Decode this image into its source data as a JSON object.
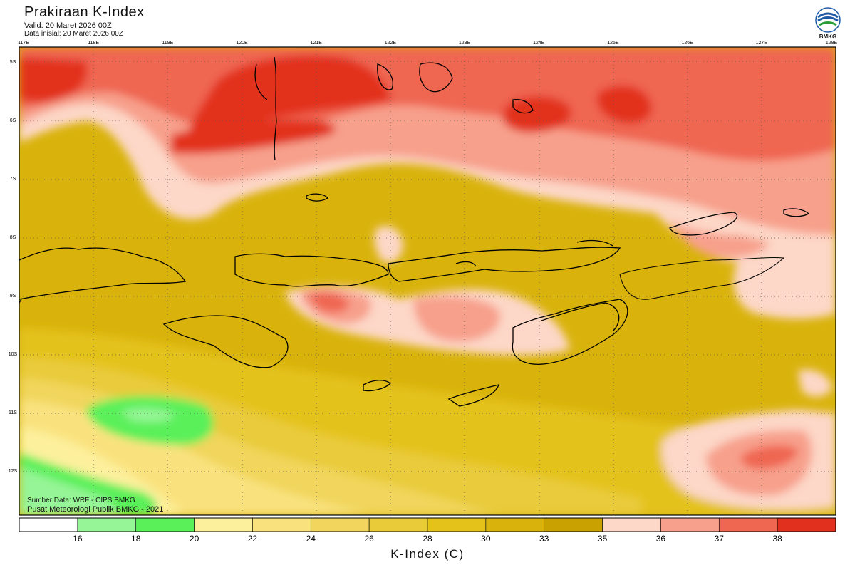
{
  "header": {
    "title": "Prakiraan K-Index",
    "valid": "Valid: 20 Maret 2026 00Z",
    "init": "Data inisial: 20 Maret 2026 00Z"
  },
  "logo": {
    "text": "BMKG",
    "icon": "bmkg-logo-icon"
  },
  "credits": {
    "source": "Sumber Data: WRF - CIPS BMKG",
    "org": "Pusat Meteorologi Publik BMKG - 2021"
  },
  "axes": {
    "lon_labels": [
      "117E",
      "118E",
      "119E",
      "120E",
      "121E",
      "122E",
      "123E",
      "124E",
      "125E",
      "126E",
      "127E",
      "128E"
    ],
    "lat_labels": [
      "5S",
      "6S",
      "7S",
      "8S",
      "9S",
      "10S",
      "11S",
      "12S"
    ]
  },
  "legend": {
    "title": "K-Index (C)",
    "ticks": [
      "16",
      "18",
      "20",
      "22",
      "24",
      "26",
      "28",
      "30",
      "33",
      "35",
      "36",
      "37",
      "38"
    ],
    "colors": [
      "#ffffff",
      "#96f596",
      "#5af05a",
      "#fdf09c",
      "#f9e27e",
      "#f1d55c",
      "#e9cb3a",
      "#e4c21a",
      "#d9b30c",
      "#c9a100",
      "#fdd7c7",
      "#f7a08c",
      "#ef6651",
      "#e2301f"
    ]
  },
  "chart_data": {
    "type": "heatmap",
    "title": "Prakiraan K-Index",
    "variable": "K-Index",
    "unit": "C",
    "lon_range": [
      117,
      128
    ],
    "lat_range": [
      -5,
      -12
    ],
    "levels": [
      16,
      18,
      20,
      22,
      24,
      26,
      28,
      30,
      33,
      35,
      36,
      37,
      38
    ],
    "regions": [
      {
        "name": "north-red-band",
        "approx_value": 38
      },
      {
        "name": "north-salmon",
        "approx_value": 37
      },
      {
        "name": "central-gold",
        "approx_value": 33
      },
      {
        "name": "south-yellow",
        "approx_value": 24
      },
      {
        "name": "green-minimum",
        "approx_value": 19
      },
      {
        "name": "southeast-maximum",
        "approx_value": 37
      }
    ]
  }
}
